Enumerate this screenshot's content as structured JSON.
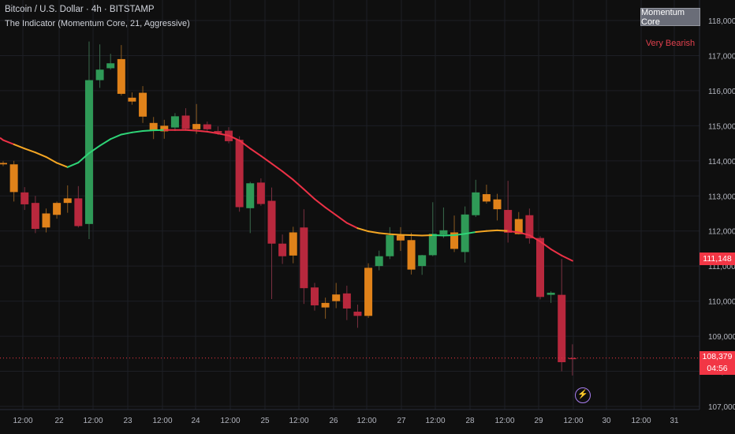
{
  "header": {
    "title": "Bitcoin / U.S. Dollar · 4h · BITSTAMP",
    "indicator": "The Indicator (Momentum Core, 21, Aggressive)"
  },
  "indicator_panel": {
    "name": "Momentum Core",
    "sentiment": "Very Bearish"
  },
  "price_tags": {
    "ma_value": "111,148",
    "last_price": "108,379",
    "countdown": "04:56"
  },
  "icons": {
    "replay": "lightning-icon"
  },
  "colors": {
    "bull": "#2f9a57",
    "bear": "#b8283d",
    "neutral": "#e0821a",
    "ma_green": "#2ed577",
    "ma_orange": "#f5a623",
    "ma_red": "#ec3146"
  },
  "chart_data": {
    "type": "candlestick",
    "title": "Bitcoin / U.S. Dollar · 4h · BITSTAMP",
    "ylim": [
      106600,
      118400
    ],
    "y_ticks": [
      "107,000",
      "108,000",
      "109,000",
      "110,000",
      "111,000",
      "112,000",
      "113,000",
      "114,000",
      "115,000",
      "116,000",
      "117,000",
      "118,000"
    ],
    "x_ticks": [
      "12:00",
      "22",
      "12:00",
      "23",
      "12:00",
      "24",
      "12:00",
      "25",
      "12:00",
      "26",
      "12:00",
      "27",
      "12:00",
      "28",
      "12:00",
      "29",
      "12:00",
      "30",
      "12:00",
      "31"
    ],
    "grid": true,
    "candles": [
      {
        "o": 113940,
        "h": 113990,
        "l": 113850,
        "c": 113900,
        "color": "neutral"
      },
      {
        "o": 113900,
        "h": 114000,
        "l": 112840,
        "c": 113110,
        "color": "neutral"
      },
      {
        "o": 113100,
        "h": 113250,
        "l": 112600,
        "c": 112760,
        "color": "bear"
      },
      {
        "o": 112800,
        "h": 113000,
        "l": 111940,
        "c": 112060,
        "color": "bear"
      },
      {
        "o": 112100,
        "h": 112640,
        "l": 111960,
        "c": 112500,
        "color": "neutral"
      },
      {
        "o": 112460,
        "h": 112840,
        "l": 112350,
        "c": 112800,
        "color": "neutral"
      },
      {
        "o": 112800,
        "h": 113300,
        "l": 112520,
        "c": 112930,
        "color": "neutral"
      },
      {
        "o": 112930,
        "h": 113280,
        "l": 112100,
        "c": 112140,
        "color": "bear"
      },
      {
        "o": 112200,
        "h": 117400,
        "l": 111770,
        "c": 116300,
        "color": "bull"
      },
      {
        "o": 116300,
        "h": 117320,
        "l": 116080,
        "c": 116600,
        "color": "bull"
      },
      {
        "o": 116640,
        "h": 117050,
        "l": 116600,
        "c": 116780,
        "color": "bull"
      },
      {
        "o": 116900,
        "h": 117300,
        "l": 115860,
        "c": 115910,
        "color": "neutral"
      },
      {
        "o": 115800,
        "h": 115950,
        "l": 115600,
        "c": 115690,
        "color": "neutral"
      },
      {
        "o": 115940,
        "h": 116130,
        "l": 115080,
        "c": 115260,
        "color": "neutral"
      },
      {
        "o": 115080,
        "h": 115250,
        "l": 114620,
        "c": 114860,
        "color": "neutral"
      },
      {
        "o": 115000,
        "h": 115170,
        "l": 114630,
        "c": 114840,
        "color": "neutral"
      },
      {
        "o": 114950,
        "h": 115360,
        "l": 114850,
        "c": 115270,
        "color": "bull"
      },
      {
        "o": 115290,
        "h": 115500,
        "l": 114880,
        "c": 114910,
        "color": "bear"
      },
      {
        "o": 114900,
        "h": 115620,
        "l": 114770,
        "c": 115050,
        "color": "neutral"
      },
      {
        "o": 115040,
        "h": 115120,
        "l": 114860,
        "c": 114900,
        "color": "bear"
      },
      {
        "o": 114850,
        "h": 114980,
        "l": 114740,
        "c": 114790,
        "color": "bear"
      },
      {
        "o": 114860,
        "h": 114960,
        "l": 114500,
        "c": 114560,
        "color": "bear"
      },
      {
        "o": 114600,
        "h": 114700,
        "l": 112550,
        "c": 112680,
        "color": "bear"
      },
      {
        "o": 112650,
        "h": 113400,
        "l": 111940,
        "c": 113360,
        "color": "bull"
      },
      {
        "o": 113380,
        "h": 113500,
        "l": 112720,
        "c": 112770,
        "color": "bear"
      },
      {
        "o": 112860,
        "h": 113240,
        "l": 110060,
        "c": 111640,
        "color": "bear"
      },
      {
        "o": 111640,
        "h": 111900,
        "l": 111060,
        "c": 111280,
        "color": "bear"
      },
      {
        "o": 111300,
        "h": 112120,
        "l": 111080,
        "c": 111960,
        "color": "neutral"
      },
      {
        "o": 112100,
        "h": 112620,
        "l": 109920,
        "c": 110370,
        "color": "bear"
      },
      {
        "o": 110390,
        "h": 110520,
        "l": 109730,
        "c": 109880,
        "color": "bear"
      },
      {
        "o": 109820,
        "h": 110100,
        "l": 109500,
        "c": 109950,
        "color": "neutral"
      },
      {
        "o": 110000,
        "h": 110520,
        "l": 109800,
        "c": 110190,
        "color": "neutral"
      },
      {
        "o": 110220,
        "h": 110440,
        "l": 109460,
        "c": 109790,
        "color": "bear"
      },
      {
        "o": 109700,
        "h": 109900,
        "l": 109240,
        "c": 109580,
        "color": "bear"
      },
      {
        "o": 109580,
        "h": 111080,
        "l": 109520,
        "c": 110950,
        "color": "neutral"
      },
      {
        "o": 111000,
        "h": 111440,
        "l": 110880,
        "c": 111280,
        "color": "bull"
      },
      {
        "o": 111280,
        "h": 112110,
        "l": 111200,
        "c": 111880,
        "color": "bull"
      },
      {
        "o": 111870,
        "h": 112110,
        "l": 111430,
        "c": 111730,
        "color": "neutral"
      },
      {
        "o": 111740,
        "h": 111950,
        "l": 110760,
        "c": 110900,
        "color": "neutral"
      },
      {
        "o": 111000,
        "h": 111320,
        "l": 110750,
        "c": 111310,
        "color": "bull"
      },
      {
        "o": 111310,
        "h": 112820,
        "l": 111280,
        "c": 111920,
        "color": "bull"
      },
      {
        "o": 111900,
        "h": 112670,
        "l": 111800,
        "c": 112020,
        "color": "bull"
      },
      {
        "o": 111960,
        "h": 112440,
        "l": 111400,
        "c": 111490,
        "color": "neutral"
      },
      {
        "o": 111400,
        "h": 112700,
        "l": 111100,
        "c": 112470,
        "color": "bull"
      },
      {
        "o": 112450,
        "h": 113460,
        "l": 112400,
        "c": 113100,
        "color": "bull"
      },
      {
        "o": 113050,
        "h": 113320,
        "l": 112780,
        "c": 112840,
        "color": "neutral"
      },
      {
        "o": 112900,
        "h": 113060,
        "l": 112300,
        "c": 112620,
        "color": "neutral"
      },
      {
        "o": 112600,
        "h": 113430,
        "l": 111670,
        "c": 111950,
        "color": "bear"
      },
      {
        "o": 111910,
        "h": 112540,
        "l": 111900,
        "c": 112340,
        "color": "neutral"
      },
      {
        "o": 112450,
        "h": 112640,
        "l": 111640,
        "c": 111790,
        "color": "bear"
      },
      {
        "o": 111800,
        "h": 111850,
        "l": 110050,
        "c": 110120,
        "color": "bear"
      },
      {
        "o": 110240,
        "h": 110280,
        "l": 109950,
        "c": 110180,
        "color": "bull"
      },
      {
        "o": 110180,
        "h": 111200,
        "l": 108000,
        "c": 108260,
        "color": "bear"
      },
      {
        "o": 108380,
        "h": 108770,
        "l": 107880,
        "c": 108380,
        "color": "bear"
      }
    ],
    "moving_average": {
      "period": 21,
      "values": [
        114590,
        114470,
        114350,
        114240,
        114110,
        113940,
        113820,
        113950,
        114220,
        114430,
        114620,
        114750,
        114810,
        114850,
        114870,
        114880,
        114880,
        114880,
        114860,
        114830,
        114780,
        114720,
        114580,
        114350,
        114140,
        113920,
        113700,
        113460,
        113190,
        112910,
        112670,
        112450,
        112230,
        112080,
        111990,
        111940,
        111910,
        111890,
        111880,
        111870,
        111880,
        111870,
        111880,
        111920,
        111970,
        112000,
        112020,
        112000,
        111960,
        111880,
        111700,
        111480,
        111300,
        111150
      ],
      "colors": [
        "red",
        "red",
        "neutral",
        "neutral",
        "neutral",
        "neutral",
        "neutral",
        "green",
        "green",
        "green",
        "green",
        "green",
        "green",
        "green",
        "green",
        "green",
        "red",
        "red",
        "red",
        "red",
        "red",
        "red",
        "red",
        "red",
        "red",
        "red",
        "red",
        "red",
        "red",
        "red",
        "red",
        "red",
        "red",
        "red",
        "neutral",
        "neutral",
        "neutral",
        "neutral",
        "neutral",
        "neutral",
        "neutral",
        "green",
        "green",
        "green",
        "green",
        "neutral",
        "neutral",
        "neutral",
        "red",
        "red",
        "red",
        "red",
        "red",
        "red"
      ]
    },
    "last_price": 108379,
    "ma_last": 111148
  }
}
